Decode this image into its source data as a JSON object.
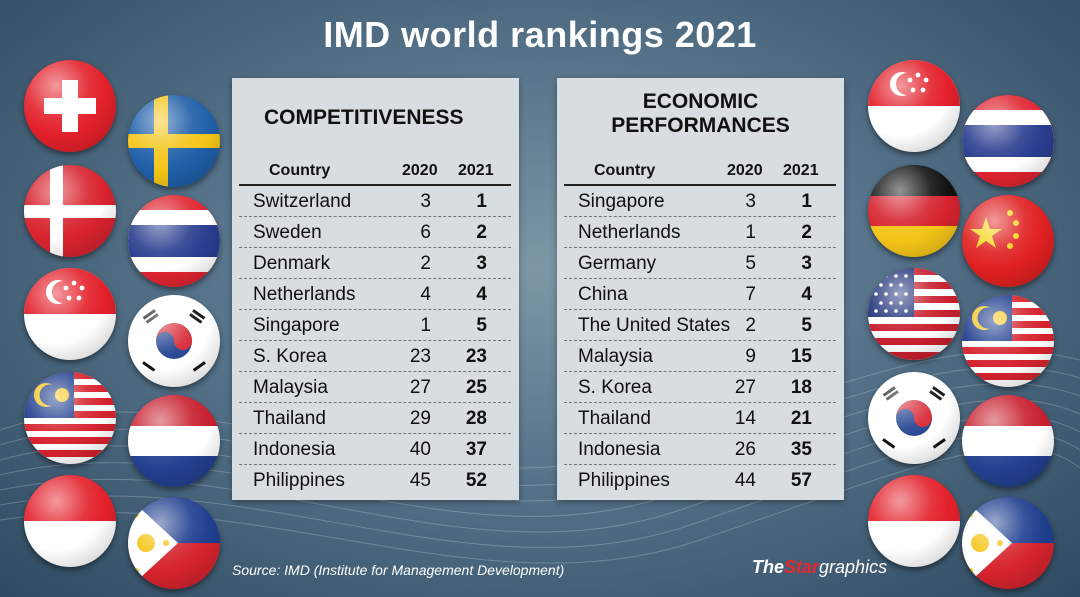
{
  "title": "IMD world rankings 2021",
  "chart_data": [
    {
      "type": "table",
      "title": "COMPETITIVENESS",
      "columns": [
        "Country",
        "2020",
        "2021"
      ],
      "rows": [
        {
          "country": "Switzerland",
          "y2020": "3",
          "y2021": "1"
        },
        {
          "country": "Sweden",
          "y2020": "6",
          "y2021": "2"
        },
        {
          "country": "Denmark",
          "y2020": "2",
          "y2021": "3"
        },
        {
          "country": "Netherlands",
          "y2020": "4",
          "y2021": "4"
        },
        {
          "country": "Singapore",
          "y2020": "1",
          "y2021": "5"
        },
        {
          "country": "S. Korea",
          "y2020": "23",
          "y2021": "23"
        },
        {
          "country": "Malaysia",
          "y2020": "27",
          "y2021": "25"
        },
        {
          "country": "Thailand",
          "y2020": "29",
          "y2021": "28"
        },
        {
          "country": "Indonesia",
          "y2020": "40",
          "y2021": "37"
        },
        {
          "country": "Philippines",
          "y2020": "45",
          "y2021": "52"
        }
      ]
    },
    {
      "type": "table",
      "title": "ECONOMIC PERFORMANCES",
      "title_lines": [
        "ECONOMIC",
        "PERFORMANCES"
      ],
      "columns": [
        "Country",
        "2020",
        "2021"
      ],
      "rows": [
        {
          "country": "Singapore",
          "y2020": "3",
          "y2021": "1"
        },
        {
          "country": "Netherlands",
          "y2020": "1",
          "y2021": "2"
        },
        {
          "country": "Germany",
          "y2020": "5",
          "y2021": "3"
        },
        {
          "country": "China",
          "y2020": "7",
          "y2021": "4"
        },
        {
          "country": "The United States",
          "y2020": "2",
          "y2021": "5"
        },
        {
          "country": "Malaysia",
          "y2020": "9",
          "y2021": "15"
        },
        {
          "country": "S. Korea",
          "y2020": "27",
          "y2021": "18"
        },
        {
          "country": "Thailand",
          "y2020": "14",
          "y2021": "21"
        },
        {
          "country": "Indonesia",
          "y2020": "26",
          "y2021": "35"
        },
        {
          "country": "Philippines",
          "y2020": "44",
          "y2021": "57"
        }
      ]
    }
  ],
  "source": "Source: IMD (Institute for Management Development)",
  "brand": {
    "the": "The",
    "star": "Star",
    "graphics": "graphics"
  },
  "flags_left": [
    "switzerland-flag",
    "sweden-flag",
    "denmark-flag",
    "thailand-flag",
    "singapore-flag",
    "south-korea-flag",
    "malaysia-flag",
    "netherlands-flag",
    "indonesia-flag",
    "philippines-flag"
  ],
  "flags_right": [
    "singapore-flag",
    "thailand-flag",
    "germany-flag",
    "china-flag",
    "united-states-flag",
    "malaysia-flag",
    "south-korea-flag",
    "netherlands-flag",
    "indonesia-flag",
    "philippines-flag"
  ],
  "colors": {
    "background": "#56738a",
    "panel": "#d8dde1",
    "text": "#111111",
    "accent_red": "#e8262b"
  }
}
